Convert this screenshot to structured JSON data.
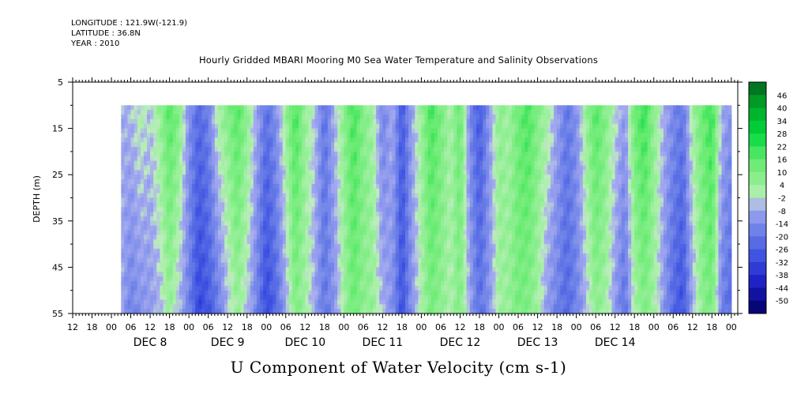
{
  "header": {
    "longitude": "LONGITUDE : 121.9W(-121.9)",
    "latitude": "LATITUDE : 36.8N",
    "year": "YEAR : 2010"
  },
  "chart_data": {
    "type": "heatmap",
    "title": "Hourly Gridded MBARI Mooring M0 Sea Water Temperature and Salinity Observations",
    "xlabel": "U Component of Water Velocity (cm s-1)",
    "ylabel": "DEPTH (m)",
    "y_range": [
      5,
      55
    ],
    "y_reversed": true,
    "y_ticks": [
      5,
      15,
      25,
      35,
      45,
      55
    ],
    "y_tick_labels": [
      "5",
      "15",
      "25",
      "35",
      "45",
      "55"
    ],
    "x_range_hours": [
      -12,
      194
    ],
    "x_hour_tick_labels": [
      "00",
      "06",
      "12",
      "18"
    ],
    "x_date_labels": [
      "DEC  8",
      "DEC  9",
      "DEC 10",
      "DEC 11",
      "DEC 12",
      "DEC 13",
      "DEC 14"
    ],
    "data_depth_range": [
      10,
      55
    ],
    "data_time_start_hour": 3,
    "colorbar": {
      "labels": [
        "46",
        "40",
        "34",
        "28",
        "22",
        "16",
        "10",
        "4",
        "-2",
        "-8",
        "-14",
        "-20",
        "-26",
        "-32",
        "-38",
        "-44",
        "-50"
      ],
      "range": [
        -50,
        50
      ]
    },
    "u_profile_hours": [
      3,
      6,
      9,
      12,
      15,
      18,
      21,
      24,
      27,
      30,
      33,
      36,
      39,
      42,
      45,
      48,
      51,
      54,
      57,
      60,
      63,
      66,
      69,
      72,
      75,
      78,
      81,
      84,
      87,
      90,
      93,
      96,
      99,
      102,
      105,
      108,
      111,
      114,
      117,
      120,
      123,
      126,
      129,
      132,
      135,
      138,
      141,
      144,
      147,
      150,
      153,
      156,
      159,
      162,
      165,
      168,
      171,
      174,
      177,
      180,
      183,
      186,
      189,
      192
    ],
    "u_surface_cms": [
      -5,
      -3,
      2,
      -2,
      6,
      18,
      10,
      -10,
      -20,
      -14,
      4,
      10,
      18,
      8,
      -5,
      -18,
      -10,
      6,
      20,
      6,
      -2,
      -18,
      -4,
      8,
      20,
      10,
      4,
      -14,
      -4,
      -24,
      -6,
      6,
      20,
      12,
      3,
      16,
      -12,
      -24,
      -8,
      8,
      4,
      14,
      20,
      10,
      4,
      -6,
      -16,
      -10,
      6,
      18,
      10,
      0,
      -8,
      14,
      22,
      8,
      -4,
      -12,
      -16,
      4,
      14,
      22,
      -4,
      -10
    ],
    "u_bottom_cms": [
      -5,
      -14,
      -10,
      -8,
      -4,
      6,
      -4,
      -14,
      -28,
      -24,
      -16,
      -4,
      6,
      -2,
      -14,
      -28,
      -20,
      -6,
      10,
      4,
      -6,
      -16,
      -10,
      4,
      14,
      8,
      6,
      -4,
      -10,
      -26,
      -10,
      2,
      12,
      8,
      2,
      10,
      -6,
      -18,
      -10,
      4,
      6,
      12,
      10,
      4,
      -8,
      -14,
      -20,
      -14,
      -4,
      8,
      4,
      -8,
      -18,
      2,
      10,
      4,
      -8,
      -20,
      -26,
      -6,
      8,
      12,
      -14,
      -20
    ]
  }
}
